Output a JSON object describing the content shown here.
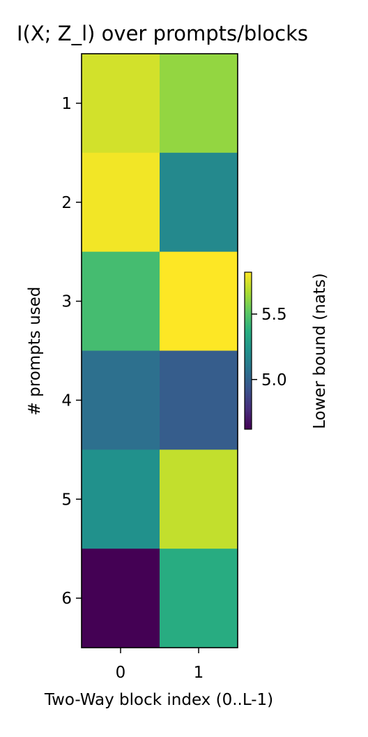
{
  "chart_data": {
    "type": "heatmap",
    "title": "I(X; Z_l) over prompts/blocks",
    "xlabel": "Two-Way block index (0..L-1)",
    "ylabel": "# prompts used",
    "x_categories": [
      "0",
      "1"
    ],
    "y_categories": [
      "1",
      "2",
      "3",
      "4",
      "5",
      "6"
    ],
    "values": [
      [
        5.74,
        5.62
      ],
      [
        5.8,
        5.18
      ],
      [
        5.45,
        5.82
      ],
      [
        5.06,
        4.97
      ],
      [
        5.22,
        5.71
      ],
      [
        4.62,
        5.36
      ]
    ],
    "colormap": "viridis",
    "vmin": 4.62,
    "vmax": 5.82,
    "colorbar": {
      "label": "Lower bound (nats)",
      "ticks": [
        5.0,
        5.5
      ],
      "tick_labels": [
        "5.0",
        "5.5"
      ]
    }
  }
}
